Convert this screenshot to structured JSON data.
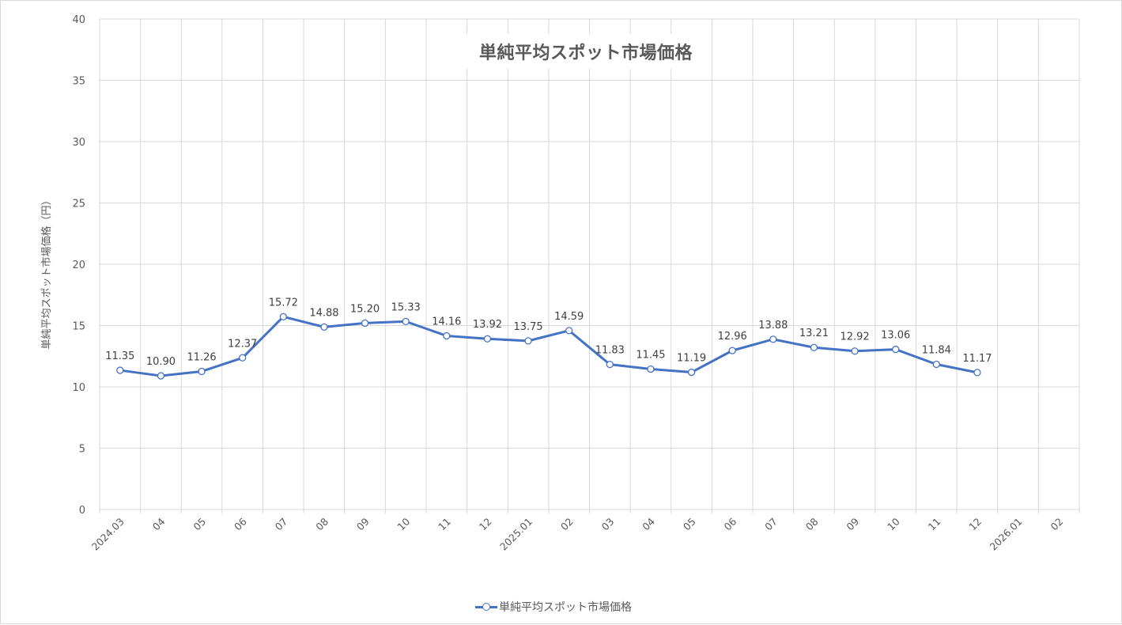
{
  "chart_data": {
    "type": "line",
    "title": "単純平均スポット市場価格",
    "xlabel": "",
    "ylabel": "単純平均スポット市場価格（円）",
    "ylim": [
      0,
      40
    ],
    "yticks": [
      0,
      5,
      10,
      15,
      20,
      25,
      30,
      35,
      40
    ],
    "grid": true,
    "legend_position": "bottom",
    "categories": [
      "2024.03",
      "04",
      "05",
      "06",
      "07",
      "08",
      "09",
      "10",
      "11",
      "12",
      "2025.01",
      "02",
      "03",
      "04",
      "05",
      "06",
      "07",
      "08",
      "09",
      "10",
      "11",
      "12",
      "2026.01",
      "02"
    ],
    "series": [
      {
        "name": "単純平均スポット市場価格",
        "color": "#4472c4",
        "marker": "circle-open",
        "values": [
          11.35,
          10.9,
          11.26,
          12.37,
          15.72,
          14.88,
          15.2,
          15.33,
          14.16,
          13.92,
          13.75,
          14.59,
          11.83,
          11.45,
          11.19,
          12.96,
          13.88,
          13.21,
          12.92,
          13.06,
          11.84,
          11.17,
          null,
          null
        ],
        "labels": [
          "11.35",
          "10.90",
          "11.26",
          "12.37",
          "15.72",
          "14.88",
          "15.20",
          "15.33",
          "14.16",
          "13.92",
          "13.75",
          "14.59",
          "11.83",
          "11.45",
          "11.19",
          "12.96",
          "13.88",
          "13.21",
          "12.92",
          "13.06",
          "11.84",
          "11.17"
        ]
      }
    ]
  },
  "title": "単純平均スポット市場価格",
  "y_axis_title": "単純平均スポット市場価格（円）",
  "legend": {
    "label": "単純平均スポット市場価格"
  }
}
